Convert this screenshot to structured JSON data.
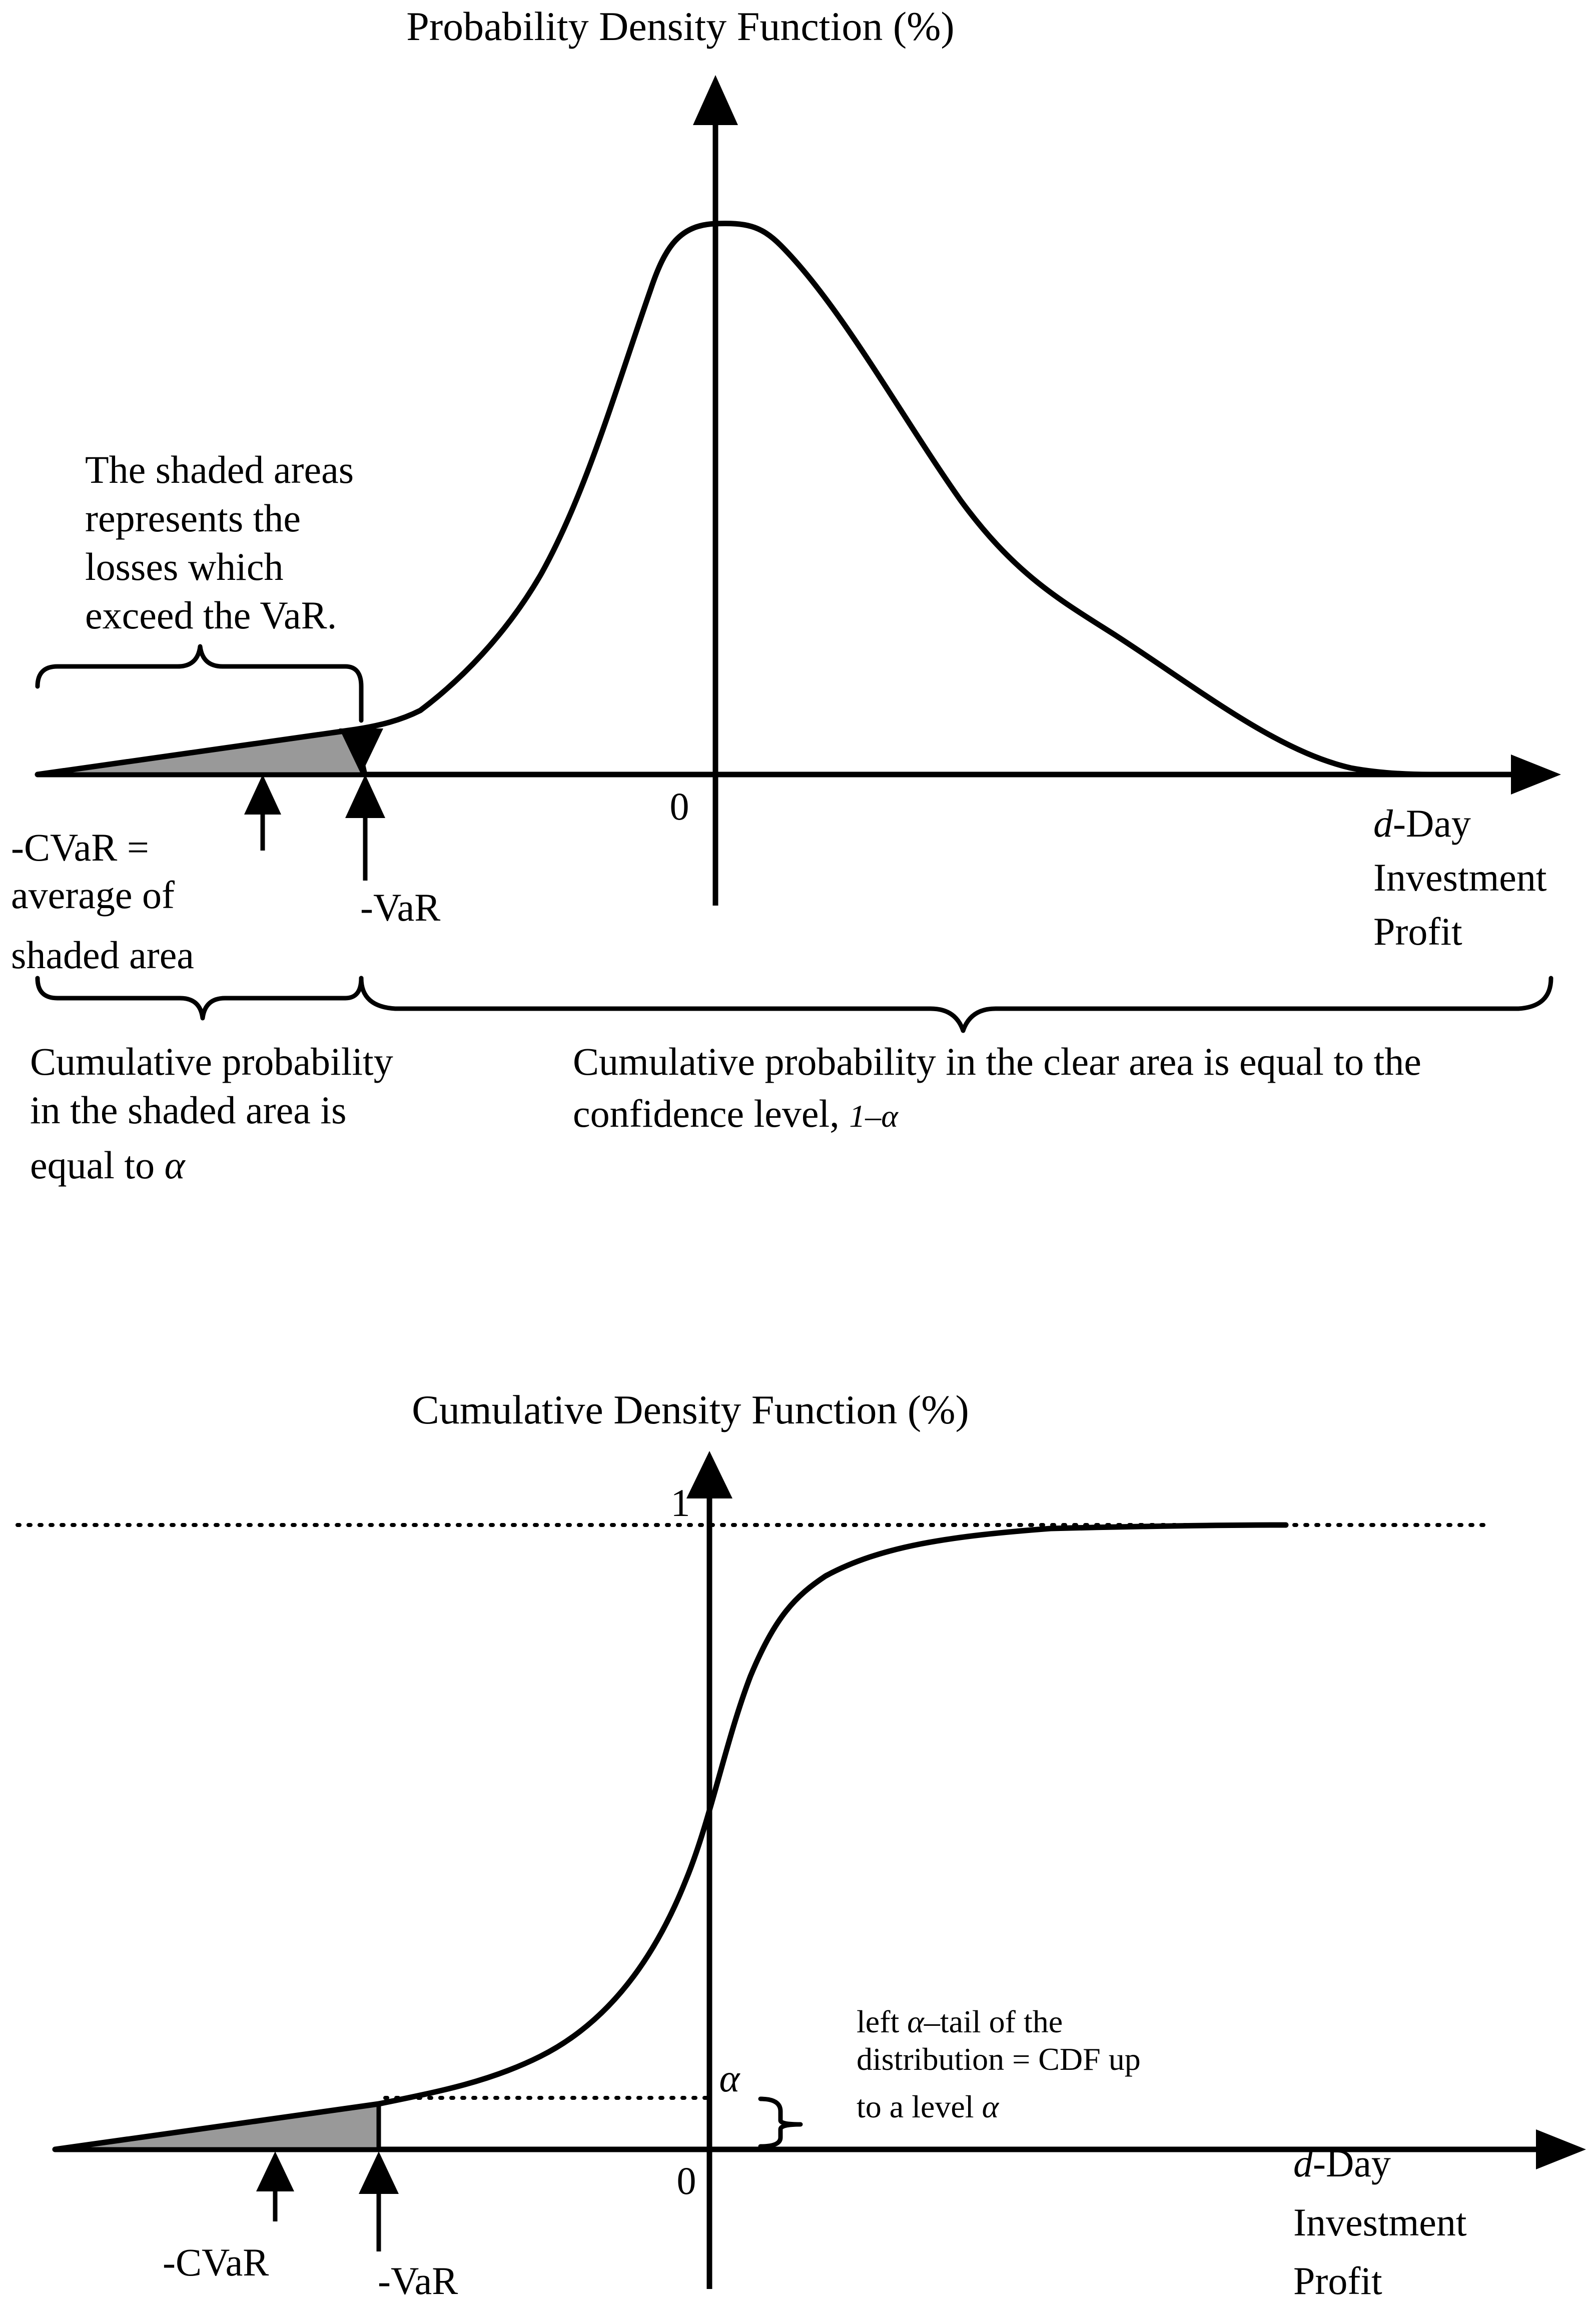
{
  "pdf_panel": {
    "title": "Probability Density Function (%)",
    "shaded_note": [
      "The shaded areas",
      "represents the",
      "losses which",
      "exceed the VaR."
    ],
    "origin_label": "0",
    "cvar_label_lines": [
      "-CVaR  =",
      "average of",
      "shaded area"
    ],
    "var_label": "-VaR",
    "x_axis_label": {
      "italic": "d",
      "rest": "-Day",
      "line2": "Investment",
      "line3": "Profit"
    },
    "left_brace_note": {
      "line1": "Cumulative  probability",
      "line2": "in the shaded area is",
      "line3_text": "equal to ",
      "line3_symbol": "α"
    },
    "right_brace_note": {
      "line1": "Cumulative  probability in the clear area is equal to the",
      "line2_text": "confidence level,  ",
      "line2_symbol": "1–α"
    }
  },
  "cdf_panel": {
    "title": "Cumulative Density Function (%)",
    "y_level_label": "1",
    "origin_label": "0",
    "alpha_label": "α",
    "cvar_label": "-CVaR",
    "var_label": "-VaR",
    "x_axis_label": {
      "italic": "d",
      "rest": "-Day",
      "line2": "Investment",
      "line3": "Profit"
    },
    "tail_note": {
      "line1_a": "left ",
      "line1_symbol": "α",
      "line1_b": "–tail of the",
      "line2": "distribution = CDF up",
      "line3_text": "to a level ",
      "line3_symbol": "α"
    }
  },
  "colors": {
    "shade": "#999999",
    "ink": "#000000",
    "background": "#ffffff"
  }
}
